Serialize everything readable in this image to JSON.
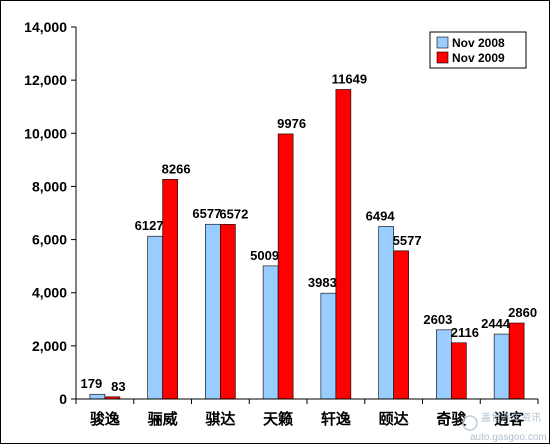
{
  "chart_data": {
    "type": "bar",
    "categories": [
      "骏逸",
      "骊威",
      "骐达",
      "天籁",
      "轩逸",
      "颐达",
      "奇骏",
      "逍客"
    ],
    "series": [
      {
        "name": "Nov 2008",
        "values": [
          179,
          6127,
          6577,
          5009,
          3983,
          6494,
          2603,
          2444
        ],
        "color": "#99ccff"
      },
      {
        "name": "Nov 2009",
        "values": [
          83,
          8266,
          6572,
          9976,
          11649,
          5577,
          2116,
          2860
        ],
        "color": "#ff0000"
      }
    ],
    "ylim": [
      0,
      14000
    ],
    "yticks": [
      0,
      2000,
      4000,
      6000,
      8000,
      10000,
      12000,
      14000
    ],
    "ytick_labels": [
      "0",
      "2,000",
      "4,000",
      "6,000",
      "8,000",
      "10,000",
      "12,000",
      "14,000"
    ],
    "grid": false,
    "legend_position": "top-right",
    "title": "",
    "xlabel": "",
    "ylabel": ""
  },
  "watermark": {
    "cn": "盖世汽车资讯",
    "url": "auto.gasgoo.com"
  }
}
